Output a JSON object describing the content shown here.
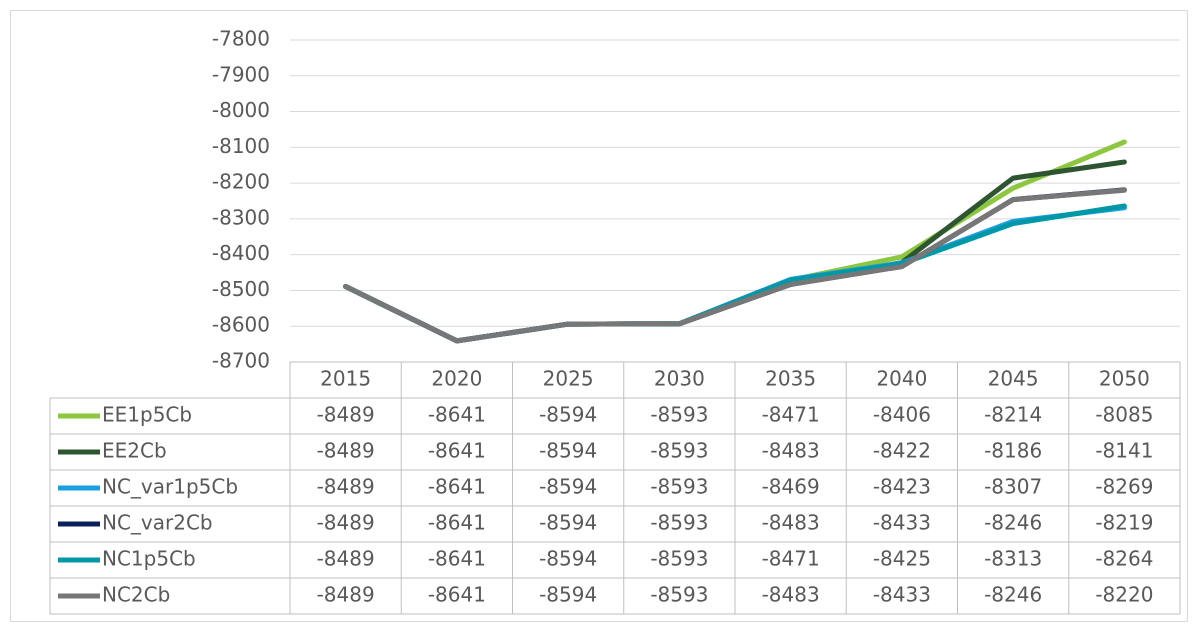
{
  "chart_data": {
    "type": "line",
    "categories": [
      "2015",
      "2020",
      "2025",
      "2030",
      "2035",
      "2040",
      "2045",
      "2050"
    ],
    "series": [
      {
        "name": "EE1p5Cb",
        "color": "#8dc63f",
        "values": [
          -8489,
          -8641,
          -8594,
          -8593,
          -8471,
          -8406,
          -8214,
          -8085
        ]
      },
      {
        "name": "EE2Cb",
        "color": "#2d5531",
        "values": [
          -8489,
          -8641,
          -8594,
          -8593,
          -8483,
          -8422,
          -8186,
          -8141
        ]
      },
      {
        "name": "NC_var1p5Cb",
        "color": "#1ba1e2",
        "values": [
          -8489,
          -8641,
          -8594,
          -8593,
          -8469,
          -8423,
          -8307,
          -8269
        ]
      },
      {
        "name": "NC_var2Cb",
        "color": "#0a1f5c",
        "values": [
          -8489,
          -8641,
          -8594,
          -8593,
          -8483,
          -8433,
          -8246,
          -8219
        ]
      },
      {
        "name": "NC1p5Cb",
        "color": "#0097a7",
        "values": [
          -8489,
          -8641,
          -8594,
          -8593,
          -8471,
          -8425,
          -8313,
          -8264
        ]
      },
      {
        "name": "NC2Cb",
        "color": "#777777",
        "values": [
          -8489,
          -8641,
          -8594,
          -8593,
          -8483,
          -8433,
          -8246,
          -8220
        ]
      }
    ],
    "ylim": [
      -8700,
      -7800
    ],
    "yticks": [
      -7800,
      -7900,
      -8000,
      -8100,
      -8200,
      -8300,
      -8400,
      -8500,
      -8600,
      -8700
    ],
    "grid": true
  }
}
